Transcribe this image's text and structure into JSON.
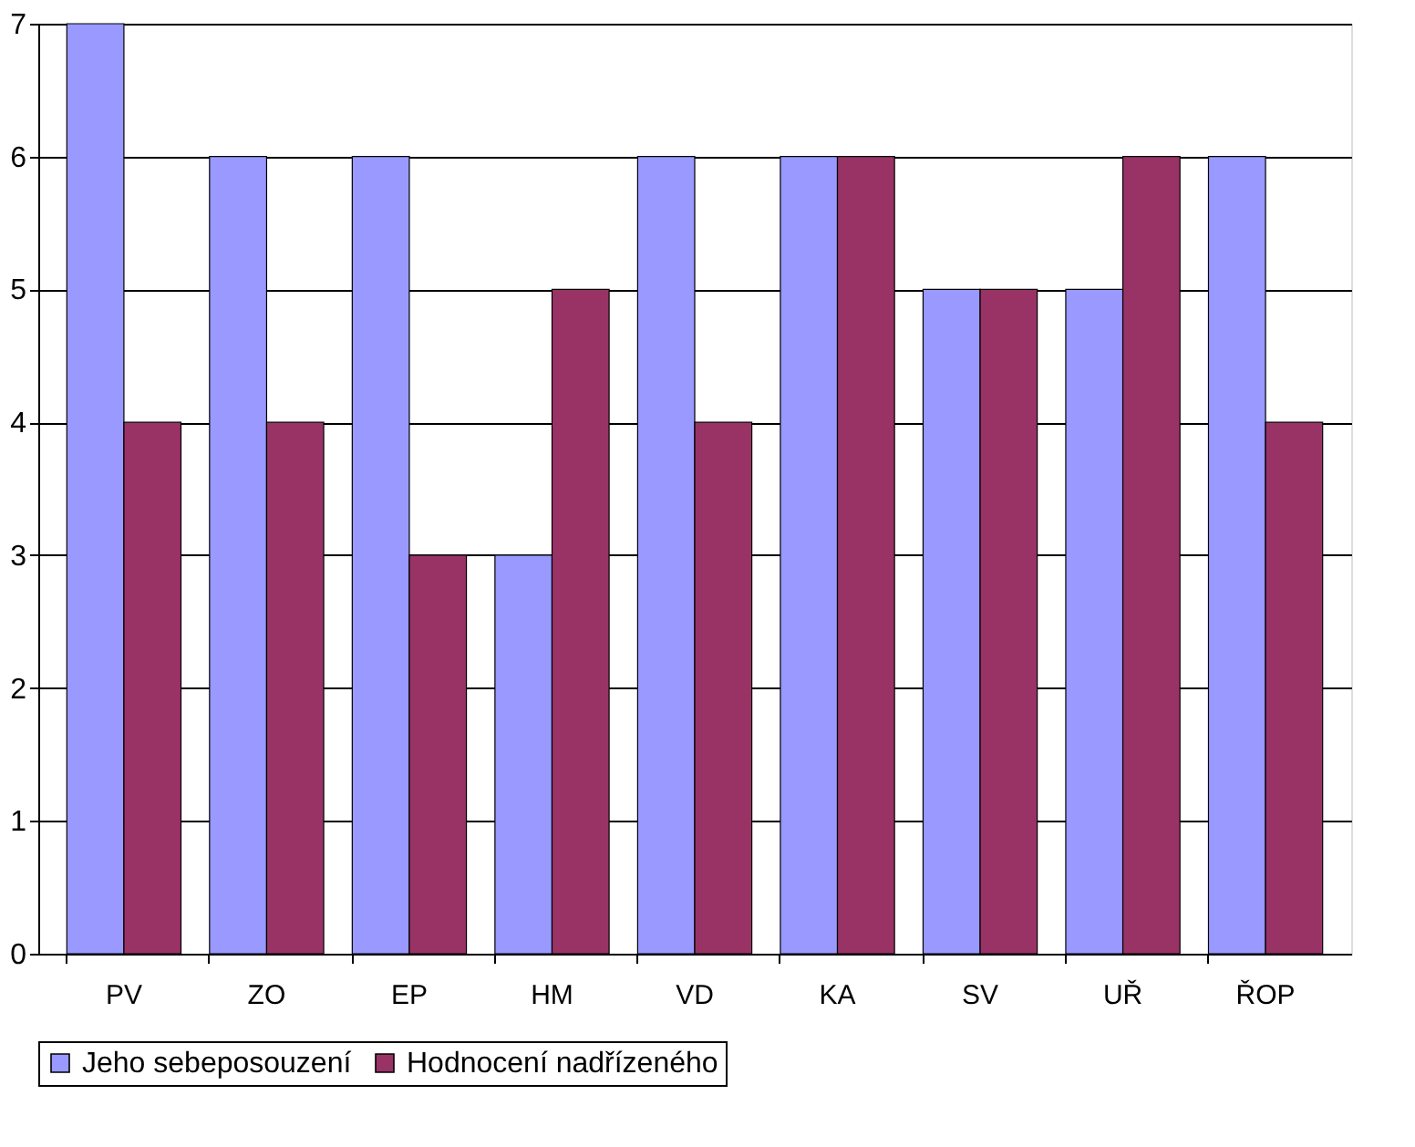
{
  "chart_data": {
    "type": "bar",
    "categories": [
      "PV",
      "ZO",
      "EP",
      "HM",
      "VD",
      "KA",
      "SV",
      "UŘ",
      "ŘOP"
    ],
    "series": [
      {
        "name": "Jeho sebeposouzení",
        "color": "#9999ff",
        "values": [
          7,
          6,
          6,
          3,
          6,
          6,
          5,
          5,
          6
        ]
      },
      {
        "name": "Hodnocení nadřízeného",
        "color": "#993366",
        "values": [
          4,
          4,
          3,
          5,
          4,
          6,
          5,
          6,
          4
        ]
      }
    ],
    "ylim": [
      0,
      7
    ],
    "yticks": [
      0,
      1,
      2,
      3,
      4,
      5,
      6,
      7
    ],
    "grid": "y",
    "legend": "bottom left"
  }
}
